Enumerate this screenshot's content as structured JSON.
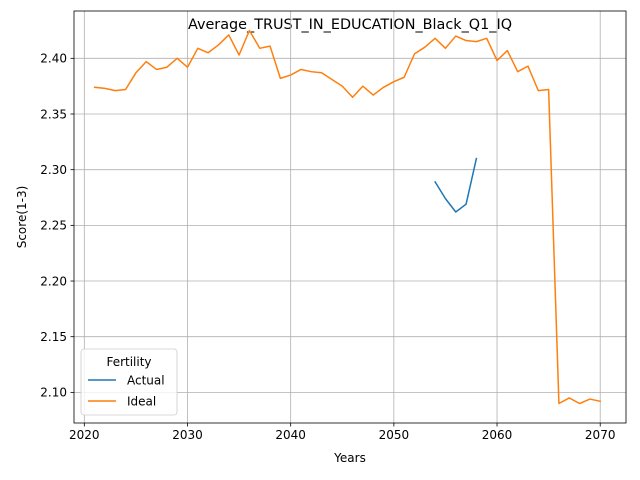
{
  "chart_data": {
    "type": "line",
    "title": "Average_TRUST_IN_EDUCATION_Black_Q1_IQ",
    "xlabel": "Years",
    "ylabel": "Score(1-3)",
    "xlim": [
      2019,
      2072.5
    ],
    "ylim": [
      2.0725,
      2.4425
    ],
    "xticks": [
      2020,
      2030,
      2040,
      2050,
      2060,
      2070
    ],
    "yticks": [
      2.1,
      2.15,
      2.2,
      2.25,
      2.3,
      2.35,
      2.4
    ],
    "xtick_labels": [
      "2020",
      "2030",
      "2040",
      "2050",
      "2060",
      "2070"
    ],
    "ytick_labels": [
      "2.10",
      "2.15",
      "2.20",
      "2.25",
      "2.30",
      "2.35",
      "2.40"
    ],
    "grid": true,
    "legend": {
      "title": "Fertility",
      "placement": "lower-left"
    },
    "series": [
      {
        "name": "Actual",
        "color": "#1f77b4",
        "x": [
          2054,
          2055,
          2056,
          2057,
          2058
        ],
        "y": [
          2.289,
          2.274,
          2.262,
          2.269,
          2.31
        ]
      },
      {
        "name": "Ideal",
        "color": "#ff7f0e",
        "x": [
          2021,
          2022,
          2023,
          2024,
          2025,
          2026,
          2027,
          2028,
          2029,
          2030,
          2031,
          2032,
          2033,
          2034,
          2035,
          2036,
          2037,
          2038,
          2039,
          2040,
          2041,
          2042,
          2043,
          2044,
          2045,
          2046,
          2047,
          2048,
          2049,
          2050,
          2051,
          2052,
          2053,
          2054,
          2055,
          2056,
          2057,
          2058,
          2059,
          2060,
          2061,
          2062,
          2063,
          2064,
          2065,
          2066,
          2067,
          2068,
          2069,
          2070
        ],
        "y": [
          2.374,
          2.373,
          2.371,
          2.372,
          2.387,
          2.397,
          2.39,
          2.392,
          2.4,
          2.392,
          2.409,
          2.405,
          2.412,
          2.421,
          2.403,
          2.425,
          2.409,
          2.411,
          2.382,
          2.385,
          2.39,
          2.388,
          2.387,
          2.381,
          2.375,
          2.365,
          2.375,
          2.367,
          2.374,
          2.379,
          2.383,
          2.404,
          2.41,
          2.418,
          2.409,
          2.42,
          2.416,
          2.415,
          2.418,
          2.398,
          2.407,
          2.388,
          2.393,
          2.371,
          2.372,
          2.09,
          2.095,
          2.09,
          2.094,
          2.092
        ]
      }
    ]
  }
}
